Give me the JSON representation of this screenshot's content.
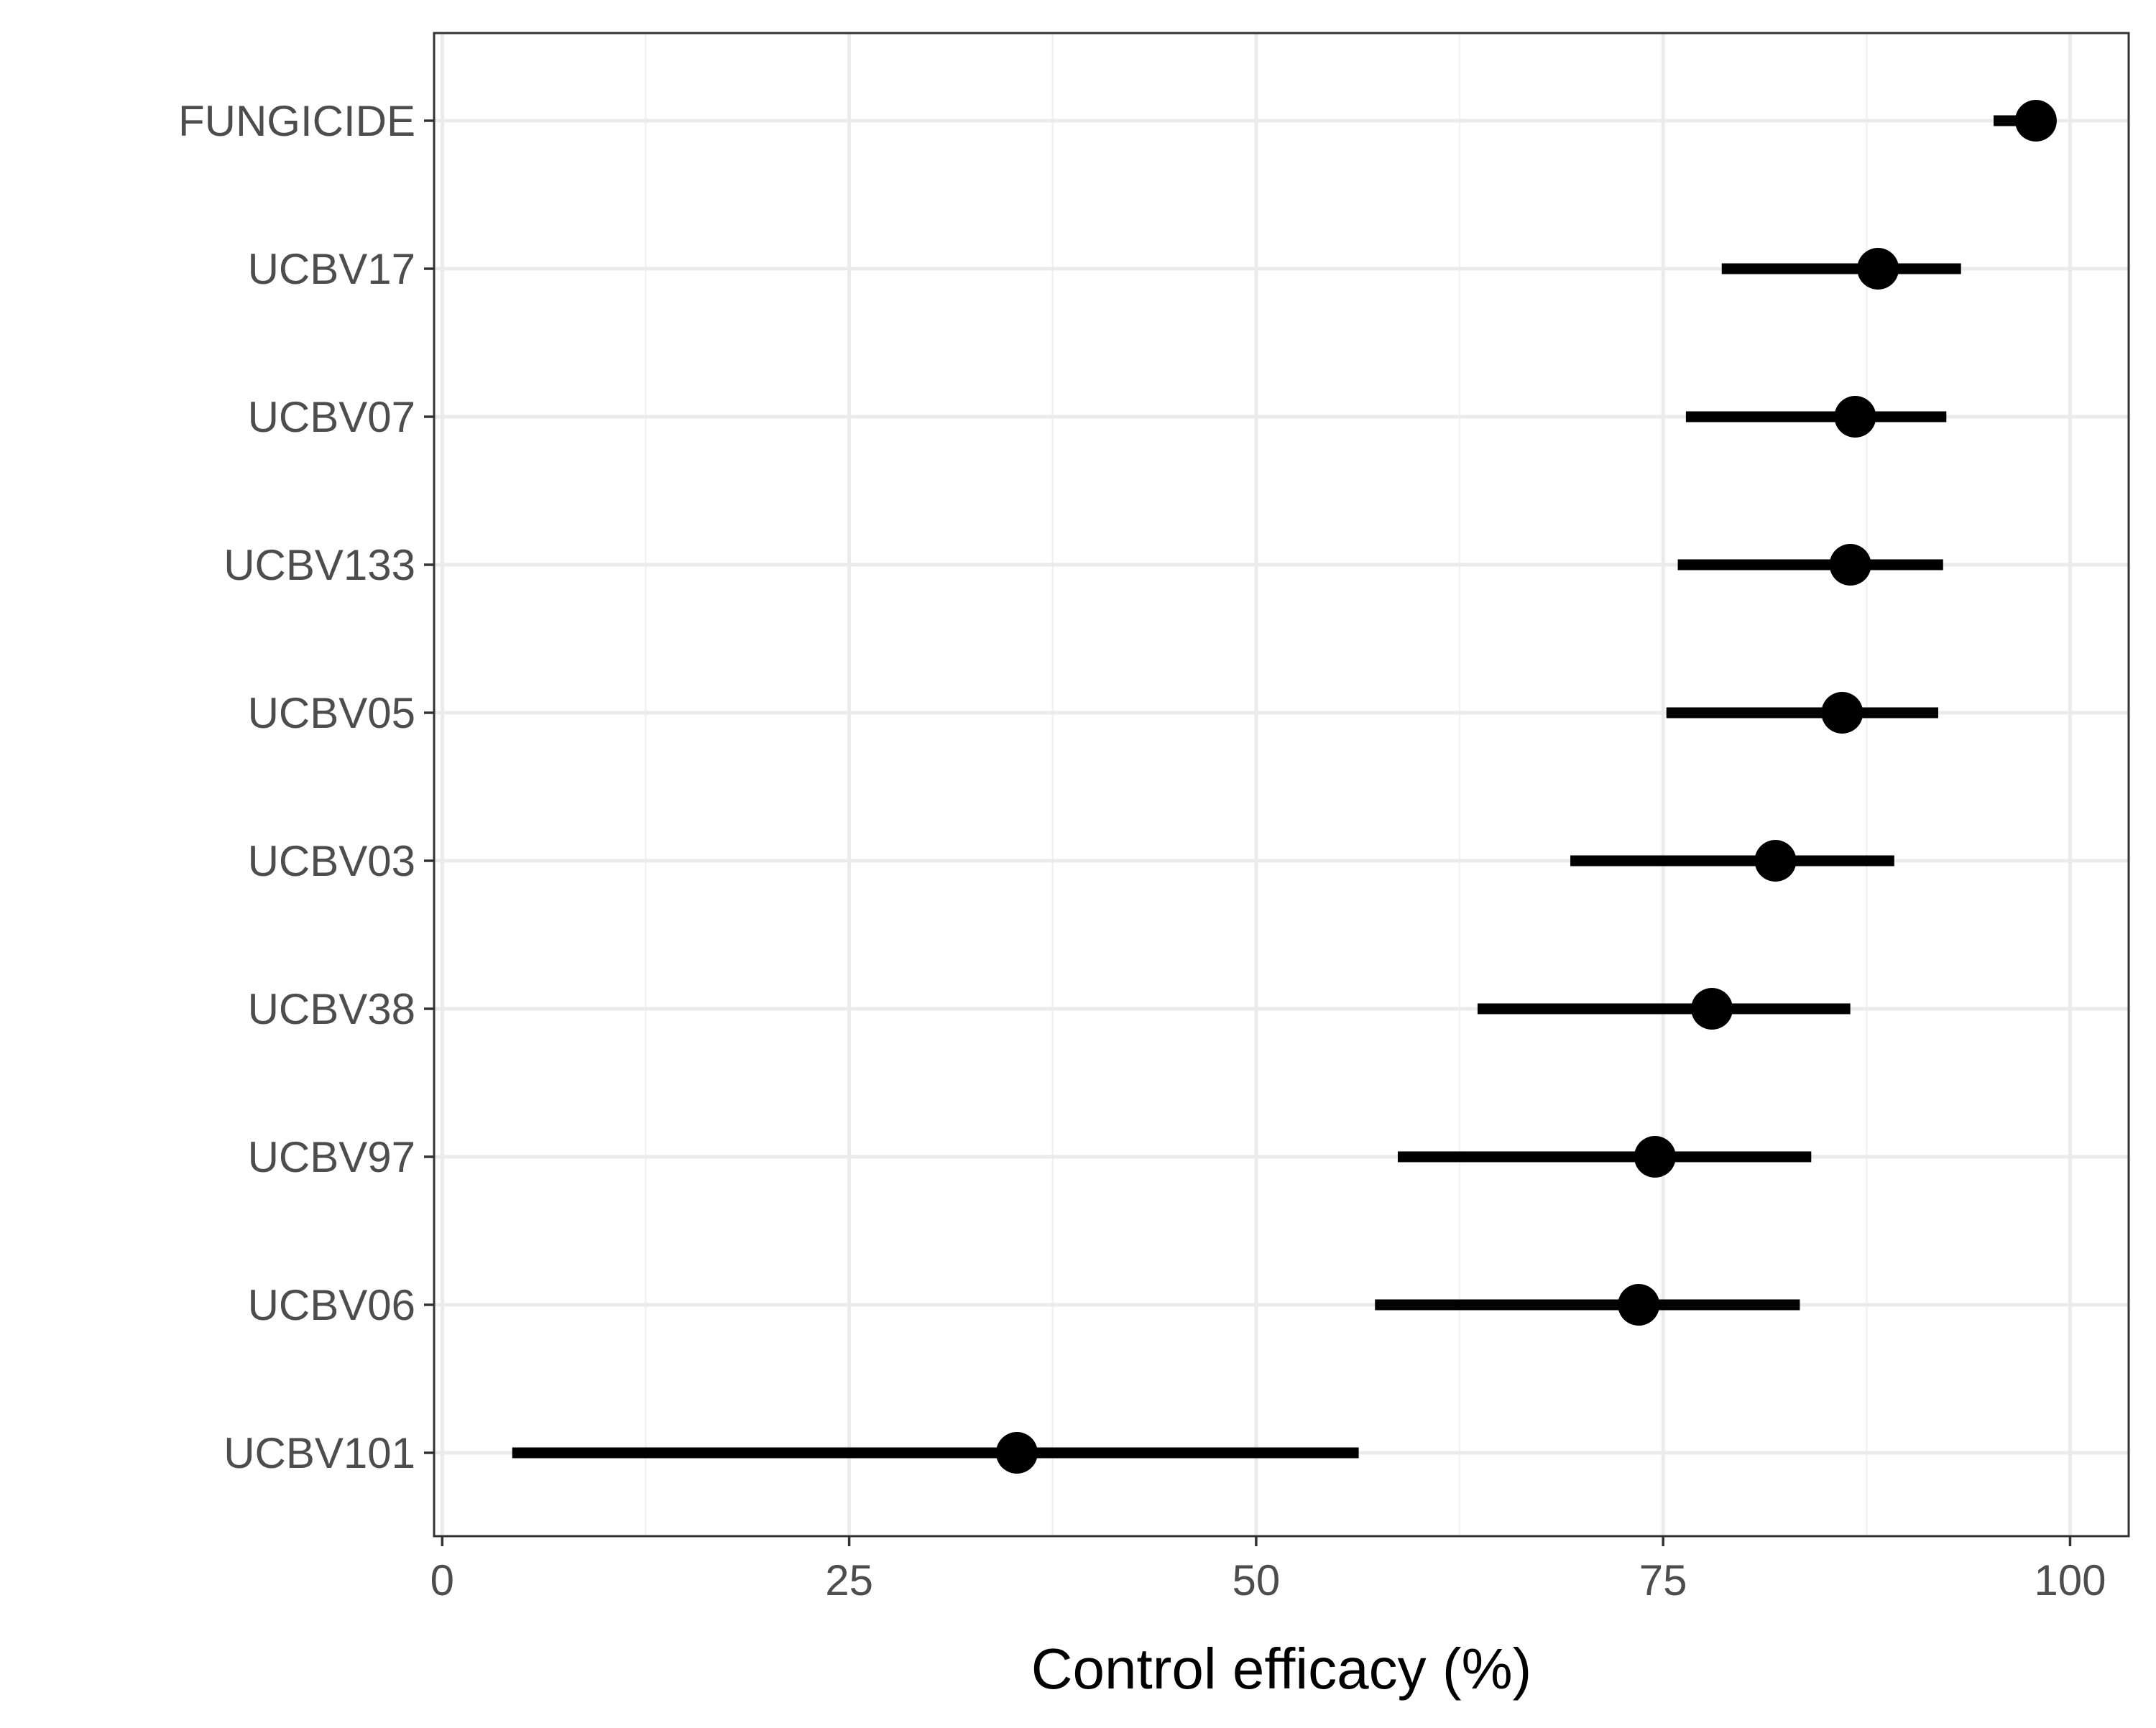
{
  "chart_data": {
    "type": "scatter",
    "xlabel": "Control efficacy (%)",
    "ylabel": "",
    "xlim": [
      0,
      100
    ],
    "x_ticks": [
      0,
      25,
      50,
      75,
      100
    ],
    "x_tick_labels": [
      "0",
      "25",
      "50",
      "75",
      "100"
    ],
    "grid": true,
    "categories": [
      "FUNGICIDE",
      "UCBV17",
      "UCBV07",
      "UCBV133",
      "UCBV05",
      "UCBV03",
      "UCBV38",
      "UCBV97",
      "UCBV06",
      "UCBV101"
    ],
    "series": [
      {
        "estimate": [
          97.9,
          88.2,
          86.8,
          86.5,
          86.0,
          81.9,
          78.0,
          74.5,
          73.5,
          35.3
        ],
        "lower": [
          95.3,
          78.6,
          76.4,
          75.9,
          75.2,
          69.3,
          63.6,
          58.7,
          57.3,
          4.3
        ],
        "upper": [
          98.8,
          93.3,
          92.4,
          92.2,
          91.9,
          89.2,
          86.5,
          84.1,
          83.4,
          56.3
        ]
      }
    ],
    "colors": {
      "points": "#000000",
      "panel_border": "#333333",
      "grid_major": "#ebebeb",
      "grid_minor": "#f2f2f2",
      "tick_text": "#4d4d4d"
    }
  }
}
